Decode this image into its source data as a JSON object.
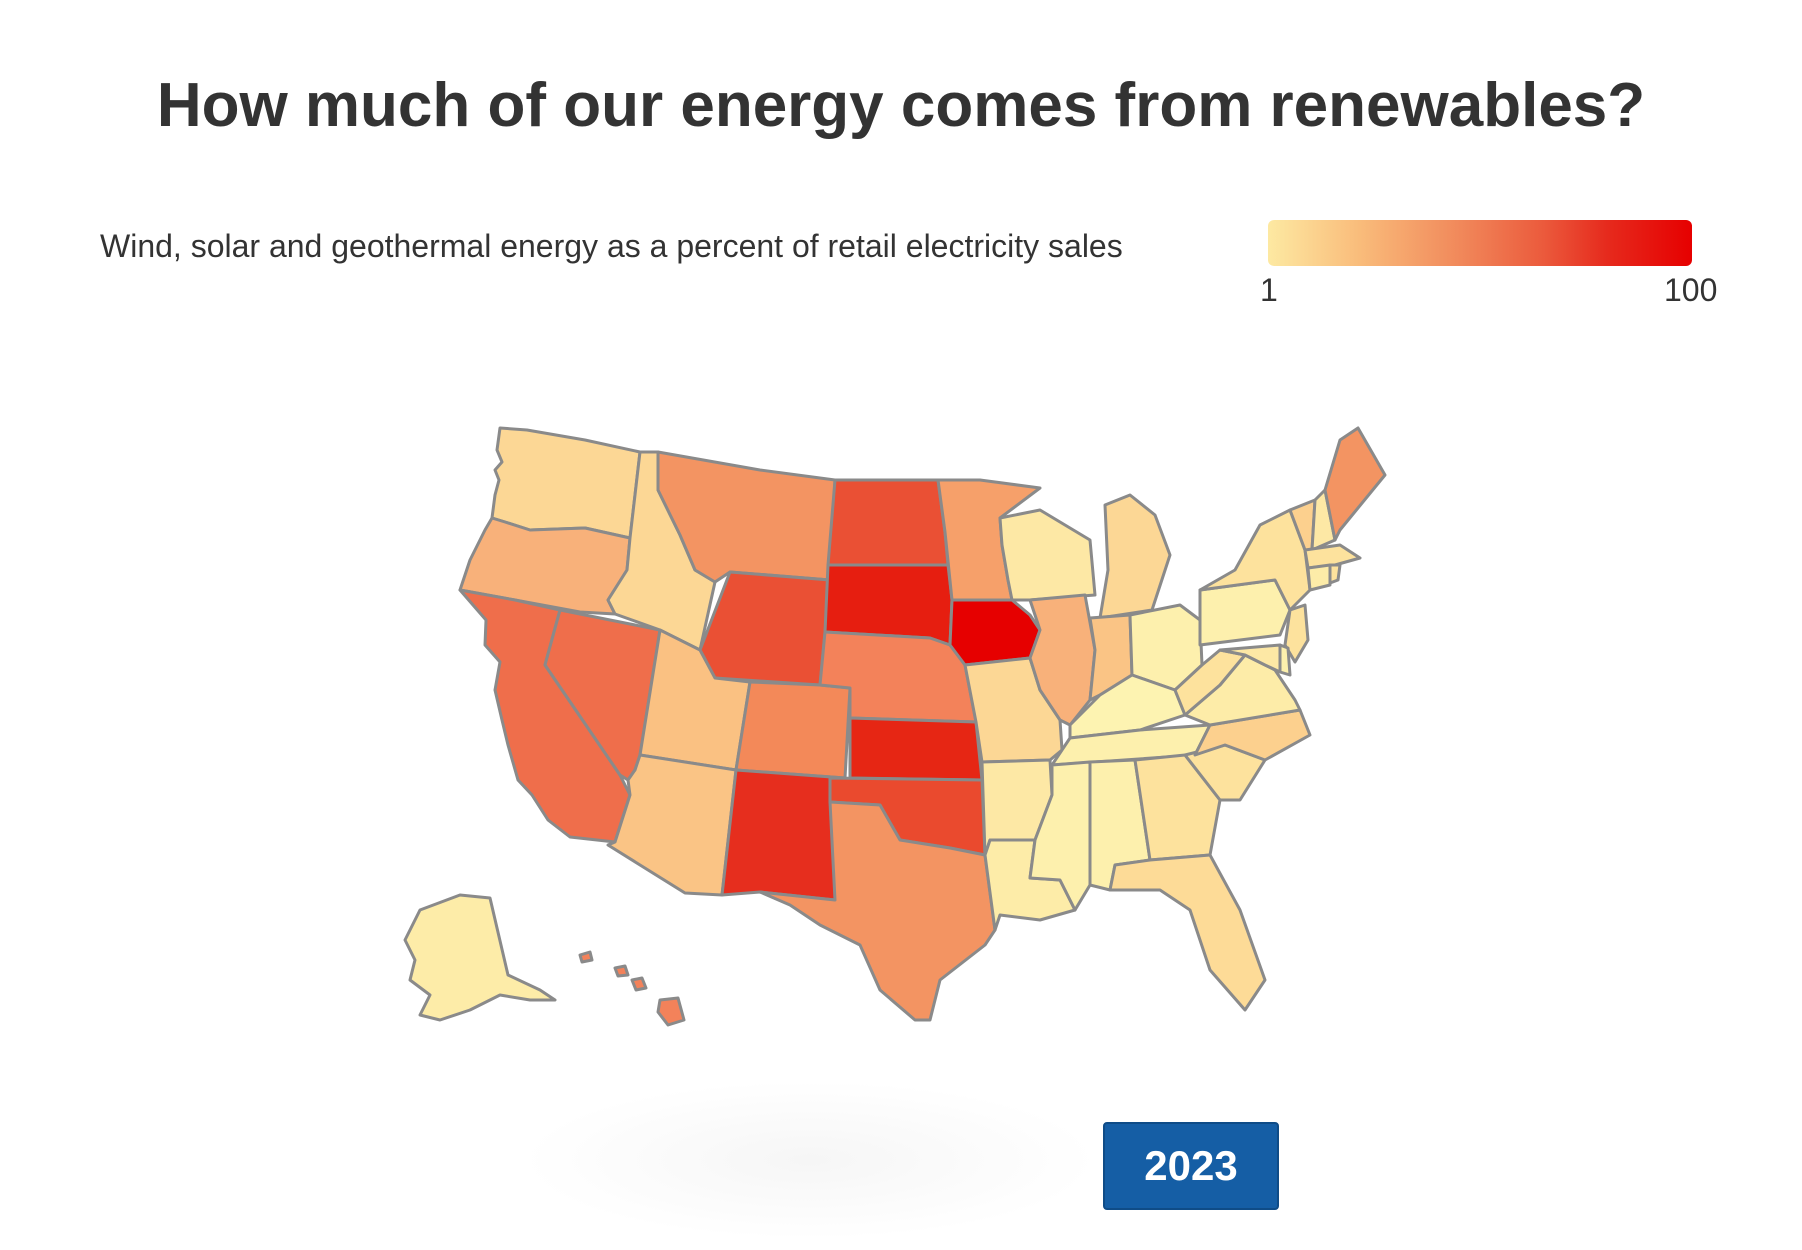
{
  "title": "How much of our energy comes from renewables?",
  "legend": {
    "label": "Wind, solar and geothermal energy as a percent of retail electricity sales",
    "min": "1",
    "max": "100",
    "color_low": "#fde9a2",
    "color_high": "#e60000"
  },
  "year": "2023",
  "states": [
    {
      "id": "WA",
      "name": "Washington",
      "color": "#fcd795"
    },
    {
      "id": "OR",
      "name": "Oregon",
      "color": "#f8b17a"
    },
    {
      "id": "CA",
      "name": "California",
      "color": "#ef6e4b"
    },
    {
      "id": "NV",
      "name": "Nevada",
      "color": "#ef6e4b"
    },
    {
      "id": "ID",
      "name": "Idaho",
      "color": "#fcd795"
    },
    {
      "id": "MT",
      "name": "Montana",
      "color": "#f39462"
    },
    {
      "id": "WY",
      "name": "Wyoming",
      "color": "#ea5034"
    },
    {
      "id": "UT",
      "name": "Utah",
      "color": "#fac182"
    },
    {
      "id": "AZ",
      "name": "Arizona",
      "color": "#fac485"
    },
    {
      "id": "CO",
      "name": "Colorado",
      "color": "#f38959"
    },
    {
      "id": "NM",
      "name": "New Mexico",
      "color": "#e62e1e"
    },
    {
      "id": "ND",
      "name": "North Dakota",
      "color": "#ea5034"
    },
    {
      "id": "SD",
      "name": "South Dakota",
      "color": "#e61e10"
    },
    {
      "id": "NE",
      "name": "Nebraska",
      "color": "#f3825a"
    },
    {
      "id": "KS",
      "name": "Kansas",
      "color": "#e62614"
    },
    {
      "id": "OK",
      "name": "Oklahoma",
      "color": "#ea4a2e"
    },
    {
      "id": "TX",
      "name": "Texas",
      "color": "#f39462"
    },
    {
      "id": "MN",
      "name": "Minnesota",
      "color": "#f6a06a"
    },
    {
      "id": "IA",
      "name": "Iowa",
      "color": "#e60000"
    },
    {
      "id": "MO",
      "name": "Missouri",
      "color": "#fcd795"
    },
    {
      "id": "AR",
      "name": "Arkansas",
      "color": "#fde8a5"
    },
    {
      "id": "LA",
      "name": "Louisiana",
      "color": "#fdeca8"
    },
    {
      "id": "WI",
      "name": "Wisconsin",
      "color": "#fde8a5"
    },
    {
      "id": "IL",
      "name": "Illinois",
      "color": "#f8b17a"
    },
    {
      "id": "MI",
      "name": "Michigan",
      "color": "#fcd795"
    },
    {
      "id": "IN",
      "name": "Indiana",
      "color": "#fac485"
    },
    {
      "id": "OH",
      "name": "Ohio",
      "color": "#fdf0ad"
    },
    {
      "id": "KY",
      "name": "Kentucky",
      "color": "#fdf3b1"
    },
    {
      "id": "TN",
      "name": "Tennessee",
      "color": "#fdf0ad"
    },
    {
      "id": "MS",
      "name": "Mississippi",
      "color": "#fdf0ad"
    },
    {
      "id": "AL",
      "name": "Alabama",
      "color": "#fdf0ad"
    },
    {
      "id": "GA",
      "name": "Georgia",
      "color": "#fde29d"
    },
    {
      "id": "FL",
      "name": "Florida",
      "color": "#fddb97"
    },
    {
      "id": "SC",
      "name": "South Carolina",
      "color": "#fde29d"
    },
    {
      "id": "NC",
      "name": "North Carolina",
      "color": "#fcd08e"
    },
    {
      "id": "VA",
      "name": "Virginia",
      "color": "#fdeca8"
    },
    {
      "id": "WV",
      "name": "West Virginia",
      "color": "#fde29d"
    },
    {
      "id": "PA",
      "name": "Pennsylvania",
      "color": "#fdf0ad"
    },
    {
      "id": "NY",
      "name": "New York",
      "color": "#fde29d"
    },
    {
      "id": "VT",
      "name": "Vermont",
      "color": "#fcd08e"
    },
    {
      "id": "NH",
      "name": "New Hampshire",
      "color": "#fde8a5"
    },
    {
      "id": "ME",
      "name": "Maine",
      "color": "#f39462"
    },
    {
      "id": "MA",
      "name": "Massachusetts",
      "color": "#fde29d"
    },
    {
      "id": "CT",
      "name": "Connecticut",
      "color": "#fdeca8"
    },
    {
      "id": "RI",
      "name": "Rhode Island",
      "color": "#fde29d"
    },
    {
      "id": "NJ",
      "name": "New Jersey",
      "color": "#fde29d"
    },
    {
      "id": "DE",
      "name": "Delaware",
      "color": "#fdf0ad"
    },
    {
      "id": "MD",
      "name": "Maryland",
      "color": "#fde8a5"
    },
    {
      "id": "AK",
      "name": "Alaska",
      "color": "#fdeca8"
    },
    {
      "id": "HI",
      "name": "Hawaii",
      "color": "#f3825a"
    }
  ]
}
